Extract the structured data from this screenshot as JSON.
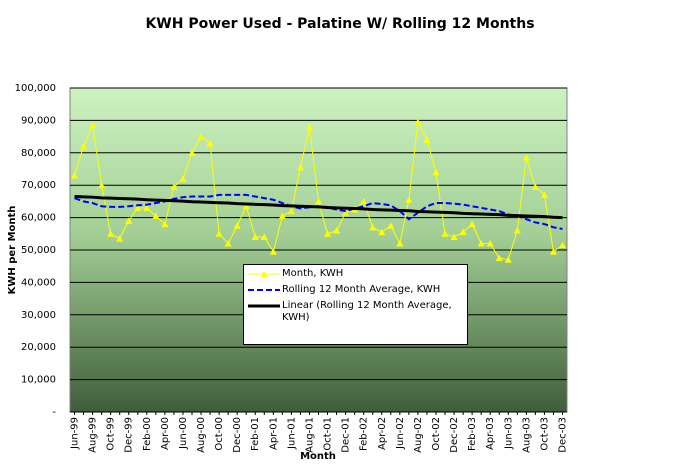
{
  "chart_data": {
    "type": "line",
    "title": "KWH Power Used - Palatine W/ Rolling 12 Months",
    "x_label": "Month",
    "y_label": "KWH per Month",
    "categories": [
      "Jun-99",
      null,
      "Aug-99",
      null,
      "Oct-99",
      null,
      "Dec-99",
      null,
      "Feb-00",
      null,
      "Apr-00",
      null,
      "Jun-00",
      null,
      "Aug-00",
      null,
      "Oct-00",
      null,
      "Dec-00",
      null,
      "Feb-01",
      null,
      "Apr-01",
      null,
      "Jun-01",
      null,
      "Aug-01",
      null,
      "Oct-01",
      null,
      "Dec-01",
      null,
      "Feb-02",
      null,
      "Apr-02",
      null,
      "Jun-02",
      null,
      "Aug-02",
      null,
      "Oct-02",
      null,
      "Dec-02",
      null,
      "Feb-03",
      null,
      "Apr-03",
      null,
      "Jun-03",
      null,
      "Aug-03",
      null,
      "Oct-03",
      null,
      "Dec-03"
    ],
    "series": [
      {
        "name": "Month, KWH",
        "color": "#ffff00",
        "values": [
          73000,
          82000,
          88500,
          70000,
          55000,
          53500,
          59000,
          63000,
          63000,
          60500,
          58000,
          69500,
          72000,
          80000,
          85000,
          83000,
          55000,
          52000,
          57500,
          63500,
          54000,
          54000,
          49500,
          60500,
          62000,
          75500,
          88000,
          65000,
          55000,
          56000,
          61500,
          62500,
          65000,
          57000,
          55500,
          57500,
          52000,
          65500,
          89500,
          84000,
          74000,
          55000,
          54000,
          55500,
          58000,
          52000,
          52000,
          47500,
          47000,
          56000,
          78500,
          69500,
          67000,
          49500,
          51500
        ]
      },
      {
        "name": "Rolling 12 Month Average, KWH",
        "color": "#0000ff",
        "values": [
          66000,
          65000,
          64500,
          63500,
          63300,
          63300,
          63500,
          63800,
          64000,
          64500,
          65000,
          65800,
          66300,
          66500,
          66500,
          66500,
          67000,
          67000,
          67000,
          67000,
          66500,
          66000,
          65500,
          64500,
          63500,
          62800,
          63200,
          63500,
          63000,
          62500,
          62000,
          62800,
          63500,
          64500,
          64200,
          63800,
          62000,
          59500,
          61500,
          63500,
          64500,
          64500,
          64300,
          64000,
          63500,
          63000,
          62500,
          62000,
          61000,
          60500,
          59500,
          58500,
          58000,
          57000,
          56500
        ]
      },
      {
        "name": "Linear (Rolling 12 Month Average, KWH)",
        "color": "#000000",
        "values": [
          66500,
          66400,
          66300,
          66100,
          66000,
          65900,
          65800,
          65700,
          65500,
          65400,
          65300,
          65200,
          65100,
          64900,
          64800,
          64700,
          64600,
          64500,
          64300,
          64200,
          64100,
          64000,
          63900,
          63700,
          63600,
          63500,
          63400,
          63300,
          63100,
          63000,
          62900,
          62800,
          62700,
          62500,
          62400,
          62300,
          62200,
          62100,
          61900,
          61800,
          61700,
          61600,
          61500,
          61300,
          61200,
          61100,
          61000,
          60900,
          60700,
          60600,
          60500,
          60400,
          60300,
          60100,
          60000
        ]
      }
    ],
    "ylim": [
      0,
      100000
    ],
    "yticks": [
      {
        "value": 0,
        "label": "-"
      },
      {
        "value": 10000,
        "label": "10,000"
      },
      {
        "value": 20000,
        "label": "20,000"
      },
      {
        "value": 30000,
        "label": "30,000"
      },
      {
        "value": 40000,
        "label": "40,000"
      },
      {
        "value": 50000,
        "label": "50,000"
      },
      {
        "value": 60000,
        "label": "60,000"
      },
      {
        "value": 70000,
        "label": "70,000"
      },
      {
        "value": 80000,
        "label": "80,000"
      },
      {
        "value": 90000,
        "label": "90,000"
      },
      {
        "value": 100000,
        "label": "100,000"
      }
    ],
    "grid": true
  }
}
